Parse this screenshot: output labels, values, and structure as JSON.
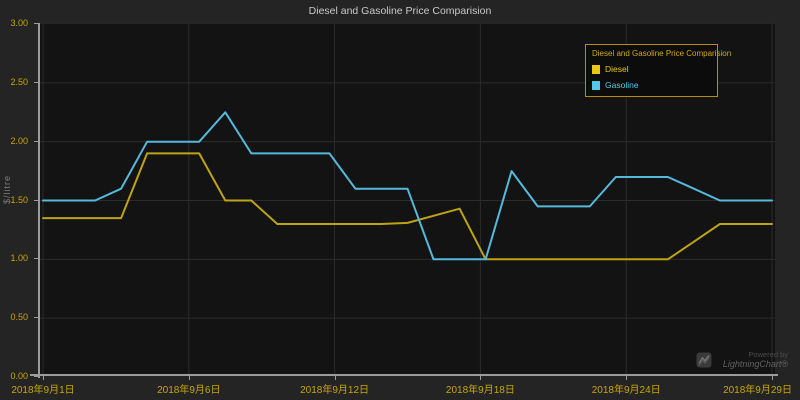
{
  "header": {
    "title": "Diesel and Gasoline Price Comparision"
  },
  "y_axis_title": "$/litre",
  "legend": {
    "title": "Diesel and Gasoline Price Comparision",
    "items": [
      {
        "label": "Diesel",
        "color": "#ecc713"
      },
      {
        "label": "Gasoline",
        "color": "#55c8ea"
      }
    ]
  },
  "watermark": {
    "powered_by": "Powered by",
    "brand": "LightningChart®"
  },
  "colors": {
    "outer_background": "#242424",
    "plot_background": "#131313",
    "grid": "#2b2b2b",
    "axis": "#9c9c9c",
    "tick_label": "#c7a50a",
    "title": "#c9c9c9"
  },
  "chart_data": {
    "type": "line",
    "title": "Diesel and Gasoline Price Comparision",
    "xlabel": "",
    "ylabel": "$/litre",
    "ylim": [
      0,
      3
    ],
    "grid": true,
    "legend_position": "top-right",
    "x": [
      1,
      2,
      3,
      4,
      5,
      6,
      7,
      8,
      9,
      10,
      11,
      12,
      13,
      14,
      15,
      16,
      17,
      18,
      19,
      20,
      21,
      22,
      23,
      24,
      25,
      26,
      27,
      28,
      29
    ],
    "x_tick_labels": [
      "2018年9月1日",
      "2018年9月6日",
      "2018年9月12日",
      "2018年9月18日",
      "2018年9月24日",
      "2018年9月29日"
    ],
    "y_tick_labels": [
      "3.00",
      "2.50",
      "2.00",
      "1.50",
      "1.00",
      "0.50",
      "0.00"
    ],
    "series": [
      {
        "name": "Diesel",
        "color": "#bda414",
        "values": [
          1.35,
          1.35,
          1.35,
          1.35,
          1.9,
          1.9,
          1.9,
          1.5,
          1.5,
          1.3,
          1.3,
          1.3,
          1.3,
          1.3,
          1.31,
          1.37,
          1.43,
          1.0,
          1.0,
          1.0,
          1.0,
          1.0,
          1.0,
          1.0,
          1.0,
          1.15,
          1.3,
          1.3,
          1.3
        ]
      },
      {
        "name": "Gasoline",
        "color": "#55b9dc",
        "values": [
          1.5,
          1.5,
          1.5,
          1.6,
          2.0,
          2.0,
          2.0,
          2.25,
          1.9,
          1.9,
          1.9,
          1.9,
          1.6,
          1.6,
          1.6,
          1.0,
          1.0,
          1.0,
          1.75,
          1.45,
          1.45,
          1.45,
          1.7,
          1.7,
          1.7,
          1.6,
          1.5,
          1.5,
          1.5
        ]
      }
    ]
  }
}
